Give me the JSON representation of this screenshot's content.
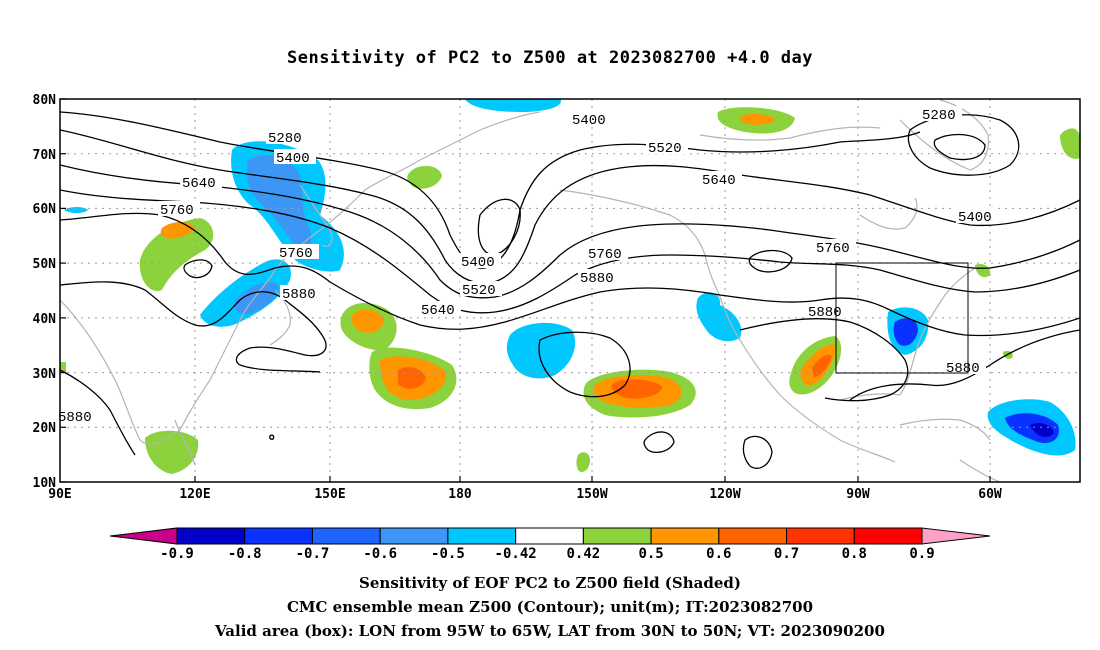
{
  "title": "Sensitivity of PC2 to Z500 at 2023082700 +4.0 day",
  "axes": {
    "lat_labels": [
      "80N",
      "70N",
      "60N",
      "50N",
      "40N",
      "30N",
      "20N",
      "10N"
    ],
    "lon_labels": [
      "90E",
      "120E",
      "150E",
      "180",
      "150W",
      "120W",
      "90W",
      "60W"
    ]
  },
  "contours": [
    {
      "label": "5280",
      "region": "west-pacific-north"
    },
    {
      "label": "5400",
      "region": "west-pacific-north"
    },
    {
      "label": "5640",
      "region": "east-asia"
    },
    {
      "label": "5760",
      "region": "east-asia"
    },
    {
      "label": "5760",
      "region": "japan"
    },
    {
      "label": "5880",
      "region": "japan"
    },
    {
      "label": "5880",
      "region": "west-edge"
    },
    {
      "label": "5400",
      "region": "central-pacific-trough"
    },
    {
      "label": "5520",
      "region": "central-pacific-trough"
    },
    {
      "label": "5640",
      "region": "central-pacific-trough"
    },
    {
      "label": "5760",
      "region": "north-pacific"
    },
    {
      "label": "5880",
      "region": "north-pacific"
    },
    {
      "label": "5400",
      "region": "arctic"
    },
    {
      "label": "5520",
      "region": "alaska"
    },
    {
      "label": "5640",
      "region": "canada"
    },
    {
      "label": "5280",
      "region": "greenland"
    },
    {
      "label": "5400",
      "region": "north-atlantic"
    },
    {
      "label": "5760",
      "region": "central-us"
    },
    {
      "label": "5880",
      "region": "central-us"
    },
    {
      "label": "5880",
      "region": "western-atlantic"
    }
  ],
  "colorbar": {
    "labels": [
      "-0.9",
      "-0.8",
      "-0.7",
      "-0.6",
      "-0.5",
      "-0.42",
      "0.42",
      "0.5",
      "0.6",
      "0.7",
      "0.8",
      "0.9"
    ],
    "colors": [
      "#0000c8",
      "#0a32ff",
      "#1e64ff",
      "#3c96f5",
      "#00c8ff",
      "#ffffff",
      "#8cd23c",
      "#ff9600",
      "#ff6400",
      "#ff3200",
      "#ff0000"
    ],
    "low_end_color": "#c8008c",
    "high_end_color": "#ffa0c8"
  },
  "captions": {
    "line1": "Sensitivity of EOF PC2 to Z500 field (Shaded)",
    "line2": "CMC ensemble mean Z500 (Contour); unit(m); IT:2023082700",
    "line3": "Valid area (box): LON from 95W to 65W, LAT from 30N to 50N; VT: 2023090200"
  }
}
